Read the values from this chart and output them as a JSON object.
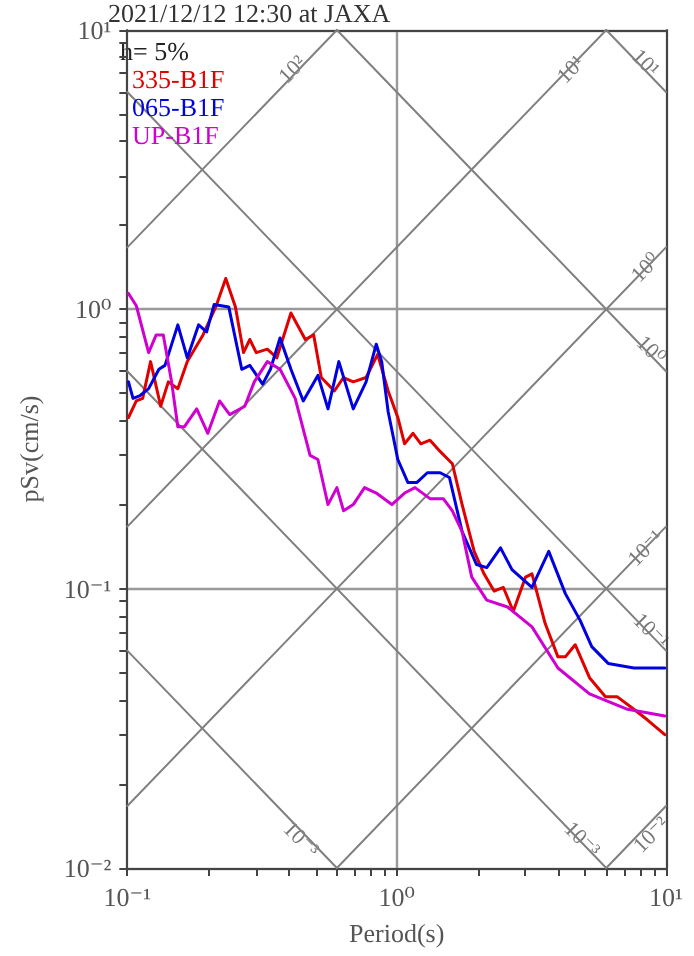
{
  "chart_data": {
    "type": "line",
    "title": "2021/12/12 12:30 at JAXA",
    "xlabel": "Period(s)",
    "ylabel": "pSv(cm/s)",
    "legend_title": "h= 5%",
    "legend": "top left",
    "log": "xy",
    "grid": true,
    "line_style": "solid",
    "marker": "none",
    "xlim": [
      0.1,
      10
    ],
    "ylim": [
      0.01,
      10
    ],
    "xticks": [
      {
        "value": 0.1,
        "label": "10⁻¹"
      },
      {
        "value": 0.2,
        "label": null
      },
      {
        "value": 0.3,
        "label": null
      },
      {
        "value": 0.4,
        "label": null
      },
      {
        "value": 0.5,
        "label": null
      },
      {
        "value": 0.6,
        "label": null
      },
      {
        "value": 0.7,
        "label": null
      },
      {
        "value": 0.8,
        "label": null
      },
      {
        "value": 0.9,
        "label": null
      },
      {
        "value": 1,
        "label": "10⁰"
      },
      {
        "value": 2,
        "label": null
      },
      {
        "value": 3,
        "label": null
      },
      {
        "value": 4,
        "label": null
      },
      {
        "value": 5,
        "label": null
      },
      {
        "value": 6,
        "label": null
      },
      {
        "value": 7,
        "label": null
      },
      {
        "value": 8,
        "label": null
      },
      {
        "value": 9,
        "label": null
      },
      {
        "value": 10,
        "label": "10¹"
      }
    ],
    "yticks": [
      {
        "value": 0.01,
        "label": "10⁻²"
      },
      {
        "value": 0.02,
        "label": null
      },
      {
        "value": 0.03,
        "label": null
      },
      {
        "value": 0.04,
        "label": null
      },
      {
        "value": 0.05,
        "label": null
      },
      {
        "value": 0.06,
        "label": null
      },
      {
        "value": 0.07,
        "label": null
      },
      {
        "value": 0.08,
        "label": null
      },
      {
        "value": 0.09,
        "label": null
      },
      {
        "value": 0.1,
        "label": "10⁻¹"
      },
      {
        "value": 0.2,
        "label": null
      },
      {
        "value": 0.3,
        "label": null
      },
      {
        "value": 0.4,
        "label": null
      },
      {
        "value": 0.5,
        "label": null
      },
      {
        "value": 0.6,
        "label": null
      },
      {
        "value": 0.7,
        "label": null
      },
      {
        "value": 0.8,
        "label": null
      },
      {
        "value": 0.9,
        "label": null
      },
      {
        "value": 1,
        "label": "10⁰"
      },
      {
        "value": 2,
        "label": null
      },
      {
        "value": 3,
        "label": null
      },
      {
        "value": 4,
        "label": null
      },
      {
        "value": 5,
        "label": null
      },
      {
        "value": 6,
        "label": null
      },
      {
        "value": 7,
        "label": null
      },
      {
        "value": 8,
        "label": null
      },
      {
        "value": 9,
        "label": null
      },
      {
        "value": 10,
        "label": "10¹"
      }
    ],
    "series": [
      {
        "color": "#808080",
        "x": [
          6,
          10
        ],
        "values": [
          10,
          6
        ]
      },
      {
        "color": "#808080",
        "x": [
          0.6,
          10
        ],
        "values": [
          10,
          0.6
        ]
      },
      {
        "color": "#808080",
        "x": [
          0.1,
          10
        ],
        "values": [
          6,
          0.06
        ]
      },
      {
        "color": "#808080",
        "x": [
          0.1,
          6
        ],
        "values": [
          0.6,
          0.01
        ]
      },
      {
        "color": "#808080",
        "x": [
          0.1,
          0.6
        ],
        "values": [
          0.06,
          0.01
        ]
      },
      {
        "color": "#808080",
        "x": [
          0.1,
          0.6
        ],
        "values": [
          1.667,
          10
        ]
      },
      {
        "color": "#808080",
        "x": [
          0.1,
          6
        ],
        "values": [
          0.1667,
          10
        ]
      },
      {
        "color": "#808080",
        "x": [
          0.1,
          10
        ],
        "values": [
          0.01667,
          1.667
        ]
      },
      {
        "color": "#808080",
        "x": [
          0.6,
          10
        ],
        "values": [
          0.01,
          0.1667
        ]
      },
      {
        "color": "#808080",
        "x": [
          6,
          10
        ],
        "values": [
          0.01,
          0.01667
        ]
      },
      {
        "name": "335-B1F",
        "color": "#e00000",
        "x": [
          0.101,
          0.108,
          0.114,
          0.122,
          0.133,
          0.142,
          0.154,
          0.167,
          0.191,
          0.213,
          0.232,
          0.252,
          0.27,
          0.285,
          0.301,
          0.331,
          0.359,
          0.405,
          0.458,
          0.492,
          0.525,
          0.587,
          0.635,
          0.69,
          0.77,
          0.85,
          0.93,
          1.01,
          1.07,
          1.15,
          1.23,
          1.33,
          1.45,
          1.61,
          1.75,
          1.94,
          2.11,
          2.3,
          2.49,
          2.71,
          3.01,
          3.18,
          3.56,
          3.97,
          4.23,
          4.6,
          5.2,
          5.96,
          6.6,
          7.6,
          8.5,
          9.9
        ],
        "values": [
          0.41,
          0.47,
          0.48,
          0.65,
          0.45,
          0.55,
          0.52,
          0.65,
          0.81,
          1.02,
          1.29,
          1.02,
          0.7,
          0.78,
          0.7,
          0.72,
          0.67,
          0.97,
          0.78,
          0.81,
          0.57,
          0.51,
          0.57,
          0.55,
          0.57,
          0.69,
          0.51,
          0.41,
          0.33,
          0.36,
          0.33,
          0.34,
          0.31,
          0.28,
          0.2,
          0.136,
          0.113,
          0.098,
          0.101,
          0.083,
          0.11,
          0.113,
          0.075,
          0.057,
          0.057,
          0.063,
          0.048,
          0.041,
          0.041,
          0.037,
          0.034,
          0.03
        ]
      },
      {
        "name": "065-B1F",
        "color": "#0000e0",
        "x": [
          0.101,
          0.105,
          0.111,
          0.12,
          0.131,
          0.138,
          0.154,
          0.167,
          0.184,
          0.197,
          0.21,
          0.238,
          0.266,
          0.285,
          0.318,
          0.34,
          0.369,
          0.405,
          0.45,
          0.51,
          0.556,
          0.61,
          0.69,
          0.77,
          0.84,
          0.88,
          0.93,
          1.01,
          1.1,
          1.19,
          1.3,
          1.45,
          1.57,
          1.75,
          1.98,
          2.16,
          2.43,
          2.68,
          3.18,
          3.67,
          4.23,
          4.8,
          5.3,
          6.1,
          7.6,
          9.9
        ],
        "values": [
          0.55,
          0.48,
          0.49,
          0.52,
          0.61,
          0.63,
          0.88,
          0.67,
          0.88,
          0.83,
          1.04,
          1.02,
          0.61,
          0.63,
          0.54,
          0.61,
          0.79,
          0.61,
          0.47,
          0.58,
          0.44,
          0.65,
          0.44,
          0.55,
          0.75,
          0.65,
          0.43,
          0.29,
          0.24,
          0.24,
          0.26,
          0.26,
          0.25,
          0.16,
          0.122,
          0.119,
          0.14,
          0.117,
          0.101,
          0.136,
          0.096,
          0.077,
          0.062,
          0.054,
          0.052,
          0.052
        ]
      },
      {
        "name": "UP-B1F",
        "color": "#d000d0",
        "x": [
          0.101,
          0.108,
          0.12,
          0.128,
          0.136,
          0.146,
          0.154,
          0.163,
          0.181,
          0.199,
          0.22,
          0.24,
          0.273,
          0.296,
          0.331,
          0.369,
          0.42,
          0.477,
          0.51,
          0.556,
          0.6,
          0.635,
          0.69,
          0.76,
          0.84,
          0.96,
          1.07,
          1.17,
          1.33,
          1.49,
          1.61,
          1.75,
          1.9,
          2.16,
          2.58,
          3.18,
          3.97,
          5.2,
          7.2,
          9.9
        ],
        "values": [
          1.14,
          1.03,
          0.7,
          0.81,
          0.81,
          0.55,
          0.38,
          0.38,
          0.44,
          0.36,
          0.47,
          0.42,
          0.45,
          0.55,
          0.65,
          0.61,
          0.48,
          0.3,
          0.29,
          0.2,
          0.23,
          0.19,
          0.2,
          0.23,
          0.22,
          0.2,
          0.22,
          0.23,
          0.21,
          0.21,
          0.19,
          0.16,
          0.11,
          0.091,
          0.086,
          0.073,
          0.052,
          0.042,
          0.037,
          0.035
        ]
      }
    ],
    "annotations": [
      {
        "text": "10²",
        "x": 0.47,
        "y": 7.2
      },
      {
        "text": "10¹",
        "x": 4.6,
        "y": 7.2
      },
      {
        "text": "10¹",
        "x": 8.4,
        "y": 7.6
      },
      {
        "text": "10⁰",
        "x": 8.5,
        "y": 1.417
      },
      {
        "text": "10⁰",
        "x": 8.8,
        "y": 0.72
      },
      {
        "text": "10⁻¹",
        "x": 8.5,
        "y": 0.1417
      },
      {
        "text": "10⁻¹",
        "x": 8.8,
        "y": 0.072
      },
      {
        "text": "10⁻³",
        "x": 0.5,
        "y": 0.013
      },
      {
        "text": "10⁻³",
        "x": 5.0,
        "y": 0.013
      },
      {
        "text": "10⁻²",
        "x": 8.9,
        "y": 0.0135
      }
    ]
  }
}
